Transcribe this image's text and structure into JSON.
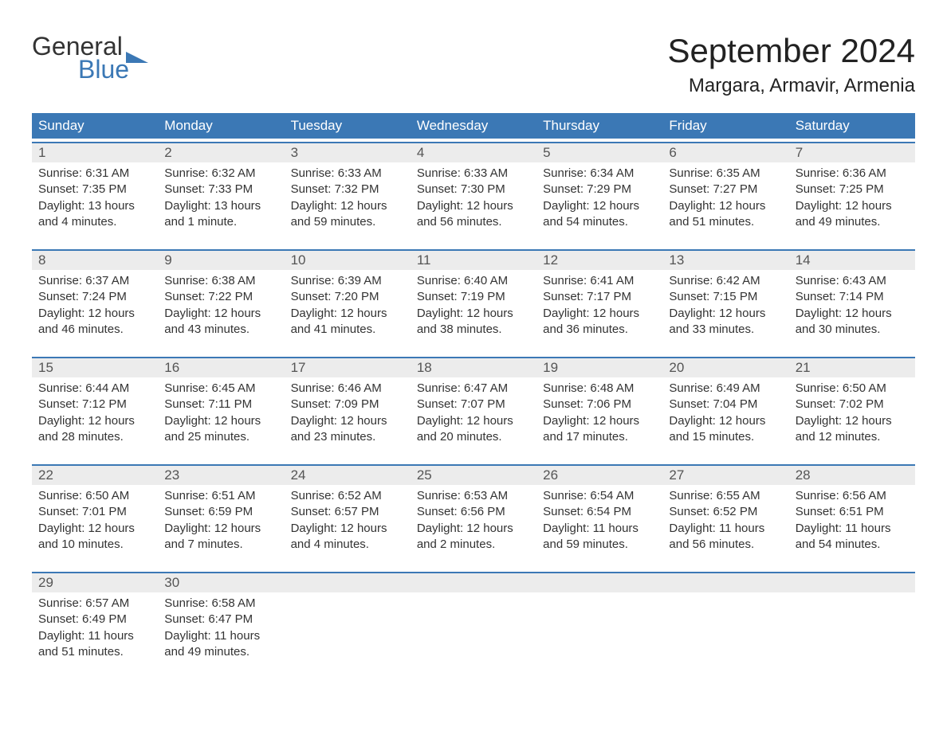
{
  "logo": {
    "text1": "General",
    "text2": "Blue",
    "text_color1": "#333333",
    "text_color2": "#3b78b5",
    "flag_color": "#3b78b5"
  },
  "title": "September 2024",
  "location": "Margara, Armavir, Armenia",
  "header_bg": "#3b78b5",
  "header_text_color": "#ffffff",
  "daynum_bg": "#ececec",
  "border_color": "#3b78b5",
  "text_color": "#333333",
  "weekdays": [
    "Sunday",
    "Monday",
    "Tuesday",
    "Wednesday",
    "Thursday",
    "Friday",
    "Saturday"
  ],
  "weeks": [
    [
      {
        "n": "1",
        "sr": "6:31 AM",
        "ss": "7:35 PM",
        "dl": "13 hours and 4 minutes."
      },
      {
        "n": "2",
        "sr": "6:32 AM",
        "ss": "7:33 PM",
        "dl": "13 hours and 1 minute."
      },
      {
        "n": "3",
        "sr": "6:33 AM",
        "ss": "7:32 PM",
        "dl": "12 hours and 59 minutes."
      },
      {
        "n": "4",
        "sr": "6:33 AM",
        "ss": "7:30 PM",
        "dl": "12 hours and 56 minutes."
      },
      {
        "n": "5",
        "sr": "6:34 AM",
        "ss": "7:29 PM",
        "dl": "12 hours and 54 minutes."
      },
      {
        "n": "6",
        "sr": "6:35 AM",
        "ss": "7:27 PM",
        "dl": "12 hours and 51 minutes."
      },
      {
        "n": "7",
        "sr": "6:36 AM",
        "ss": "7:25 PM",
        "dl": "12 hours and 49 minutes."
      }
    ],
    [
      {
        "n": "8",
        "sr": "6:37 AM",
        "ss": "7:24 PM",
        "dl": "12 hours and 46 minutes."
      },
      {
        "n": "9",
        "sr": "6:38 AM",
        "ss": "7:22 PM",
        "dl": "12 hours and 43 minutes."
      },
      {
        "n": "10",
        "sr": "6:39 AM",
        "ss": "7:20 PM",
        "dl": "12 hours and 41 minutes."
      },
      {
        "n": "11",
        "sr": "6:40 AM",
        "ss": "7:19 PM",
        "dl": "12 hours and 38 minutes."
      },
      {
        "n": "12",
        "sr": "6:41 AM",
        "ss": "7:17 PM",
        "dl": "12 hours and 36 minutes."
      },
      {
        "n": "13",
        "sr": "6:42 AM",
        "ss": "7:15 PM",
        "dl": "12 hours and 33 minutes."
      },
      {
        "n": "14",
        "sr": "6:43 AM",
        "ss": "7:14 PM",
        "dl": "12 hours and 30 minutes."
      }
    ],
    [
      {
        "n": "15",
        "sr": "6:44 AM",
        "ss": "7:12 PM",
        "dl": "12 hours and 28 minutes."
      },
      {
        "n": "16",
        "sr": "6:45 AM",
        "ss": "7:11 PM",
        "dl": "12 hours and 25 minutes."
      },
      {
        "n": "17",
        "sr": "6:46 AM",
        "ss": "7:09 PM",
        "dl": "12 hours and 23 minutes."
      },
      {
        "n": "18",
        "sr": "6:47 AM",
        "ss": "7:07 PM",
        "dl": "12 hours and 20 minutes."
      },
      {
        "n": "19",
        "sr": "6:48 AM",
        "ss": "7:06 PM",
        "dl": "12 hours and 17 minutes."
      },
      {
        "n": "20",
        "sr": "6:49 AM",
        "ss": "7:04 PM",
        "dl": "12 hours and 15 minutes."
      },
      {
        "n": "21",
        "sr": "6:50 AM",
        "ss": "7:02 PM",
        "dl": "12 hours and 12 minutes."
      }
    ],
    [
      {
        "n": "22",
        "sr": "6:50 AM",
        "ss": "7:01 PM",
        "dl": "12 hours and 10 minutes."
      },
      {
        "n": "23",
        "sr": "6:51 AM",
        "ss": "6:59 PM",
        "dl": "12 hours and 7 minutes."
      },
      {
        "n": "24",
        "sr": "6:52 AM",
        "ss": "6:57 PM",
        "dl": "12 hours and 4 minutes."
      },
      {
        "n": "25",
        "sr": "6:53 AM",
        "ss": "6:56 PM",
        "dl": "12 hours and 2 minutes."
      },
      {
        "n": "26",
        "sr": "6:54 AM",
        "ss": "6:54 PM",
        "dl": "11 hours and 59 minutes."
      },
      {
        "n": "27",
        "sr": "6:55 AM",
        "ss": "6:52 PM",
        "dl": "11 hours and 56 minutes."
      },
      {
        "n": "28",
        "sr": "6:56 AM",
        "ss": "6:51 PM",
        "dl": "11 hours and 54 minutes."
      }
    ],
    [
      {
        "n": "29",
        "sr": "6:57 AM",
        "ss": "6:49 PM",
        "dl": "11 hours and 51 minutes."
      },
      {
        "n": "30",
        "sr": "6:58 AM",
        "ss": "6:47 PM",
        "dl": "11 hours and 49 minutes."
      },
      null,
      null,
      null,
      null,
      null
    ]
  ],
  "labels": {
    "sunrise": "Sunrise: ",
    "sunset": "Sunset: ",
    "daylight": "Daylight: "
  }
}
